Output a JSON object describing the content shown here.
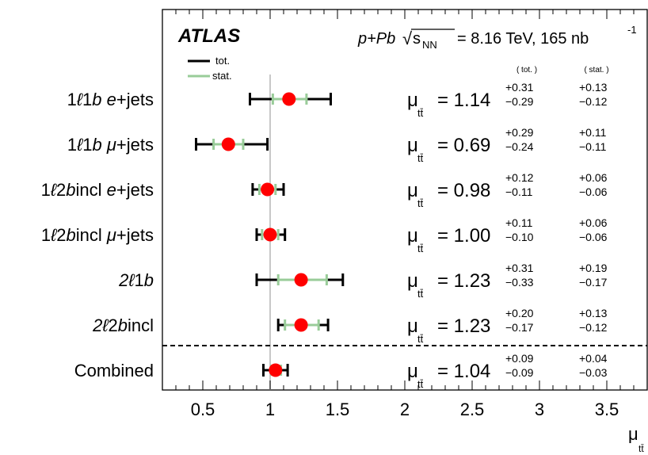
{
  "chart_data": {
    "type": "scatter",
    "subtype": "error-bar summary",
    "experiment": "ATLAS",
    "system": "p+Pb",
    "energy_label": "= 8.16 TeV, 165 nb",
    "lumi_exponent": "-1",
    "sqrt_symbol": "√",
    "sqrt_var": "s",
    "sqrt_sub": "NN",
    "legend": {
      "tot": "tot.",
      "stat": "stat.",
      "placement": "top-left"
    },
    "column_headers": {
      "tot": "( tot. )",
      "stat": "( stat. )"
    },
    "mu_symbol": "μ",
    "mu_sub": "tt̄",
    "xlabel": "μ",
    "xlabel_sub": "tt̄",
    "xlim": [
      0.2,
      3.8
    ],
    "xticks": [
      0.5,
      1,
      1.5,
      2,
      2.5,
      3,
      3.5
    ],
    "xtick_labels": [
      "0.5",
      "1",
      "1.5",
      "2",
      "2.5",
      "3",
      "3.5"
    ],
    "reference_line": 1,
    "colors": {
      "marker": "#ff0000",
      "tot": "#000000",
      "stat": "#99cc99",
      "refline": "#c8c8c8"
    },
    "channels": [
      {
        "label_parts": [
          [
            "1",
            "n"
          ],
          [
            "ℓ",
            "i"
          ],
          [
            "1",
            "n"
          ],
          [
            "b",
            "i"
          ],
          [
            " ",
            "n"
          ],
          [
            "e",
            "i"
          ],
          [
            "+jets",
            "n"
          ]
        ],
        "mu": 1.14,
        "mu_text": "= 1.14",
        "tot_up": 0.31,
        "tot_dn": 0.29,
        "stat_up": 0.13,
        "stat_dn": 0.12,
        "tot_up_txt": "+0.31",
        "tot_dn_txt": "−0.29",
        "stat_up_txt": "+0.13",
        "stat_dn_txt": "−0.12"
      },
      {
        "label_parts": [
          [
            "1",
            "n"
          ],
          [
            "ℓ",
            "i"
          ],
          [
            "1",
            "n"
          ],
          [
            "b",
            "i"
          ],
          [
            " ",
            "n"
          ],
          [
            "μ",
            "i"
          ],
          [
            "+jets",
            "n"
          ]
        ],
        "mu": 0.69,
        "mu_text": "= 0.69",
        "tot_up": 0.29,
        "tot_dn": 0.24,
        "stat_up": 0.11,
        "stat_dn": 0.11,
        "tot_up_txt": "+0.29",
        "tot_dn_txt": "−0.24",
        "stat_up_txt": "+0.11",
        "stat_dn_txt": "−0.11"
      },
      {
        "label_parts": [
          [
            "1",
            "n"
          ],
          [
            "ℓ",
            "i"
          ],
          [
            "2",
            "n"
          ],
          [
            "b",
            "i"
          ],
          [
            "incl ",
            "n"
          ],
          [
            "e",
            "i"
          ],
          [
            "+jets",
            "n"
          ]
        ],
        "mu": 0.98,
        "mu_text": "= 0.98",
        "tot_up": 0.12,
        "tot_dn": 0.11,
        "stat_up": 0.06,
        "stat_dn": 0.06,
        "tot_up_txt": "+0.12",
        "tot_dn_txt": "−0.11",
        "stat_up_txt": "+0.06",
        "stat_dn_txt": "−0.06"
      },
      {
        "label_parts": [
          [
            "1",
            "n"
          ],
          [
            "ℓ",
            "i"
          ],
          [
            "2",
            "n"
          ],
          [
            "b",
            "i"
          ],
          [
            "incl ",
            "n"
          ],
          [
            "μ",
            "i"
          ],
          [
            "+jets",
            "n"
          ]
        ],
        "mu": 1.0,
        "mu_text": "= 1.00",
        "tot_up": 0.11,
        "tot_dn": 0.1,
        "stat_up": 0.06,
        "stat_dn": 0.06,
        "tot_up_txt": "+0.11",
        "tot_dn_txt": "−0.10",
        "stat_up_txt": "+0.06",
        "stat_dn_txt": "−0.06"
      },
      {
        "label_parts": [
          [
            "2",
            "i"
          ],
          [
            "ℓ",
            "i"
          ],
          [
            "1",
            "n"
          ],
          [
            "b",
            "i"
          ]
        ],
        "mu": 1.23,
        "mu_text": "= 1.23",
        "tot_up": 0.31,
        "tot_dn": 0.33,
        "stat_up": 0.19,
        "stat_dn": 0.17,
        "tot_up_txt": "+0.31",
        "tot_dn_txt": "−0.33",
        "stat_up_txt": "+0.19",
        "stat_dn_txt": "−0.17"
      },
      {
        "label_parts": [
          [
            "2",
            "i"
          ],
          [
            "ℓ",
            "i"
          ],
          [
            "2",
            "n"
          ],
          [
            "b",
            "i"
          ],
          [
            "incl",
            "n"
          ]
        ],
        "mu": 1.23,
        "mu_text": "= 1.23",
        "tot_up": 0.2,
        "tot_dn": 0.17,
        "stat_up": 0.13,
        "stat_dn": 0.12,
        "tot_up_txt": "+0.20",
        "tot_dn_txt": "−0.17",
        "stat_up_txt": "+0.13",
        "stat_dn_txt": "−0.12"
      },
      {
        "label_parts": [
          [
            "Combined",
            "n"
          ]
        ],
        "mu": 1.04,
        "mu_text": "= 1.04",
        "tot_up": 0.09,
        "tot_dn": 0.09,
        "stat_up": 0.04,
        "stat_dn": 0.03,
        "tot_up_txt": "+0.09",
        "tot_dn_txt": "−0.09",
        "stat_up_txt": "+0.04",
        "stat_dn_txt": "−0.03"
      }
    ]
  }
}
